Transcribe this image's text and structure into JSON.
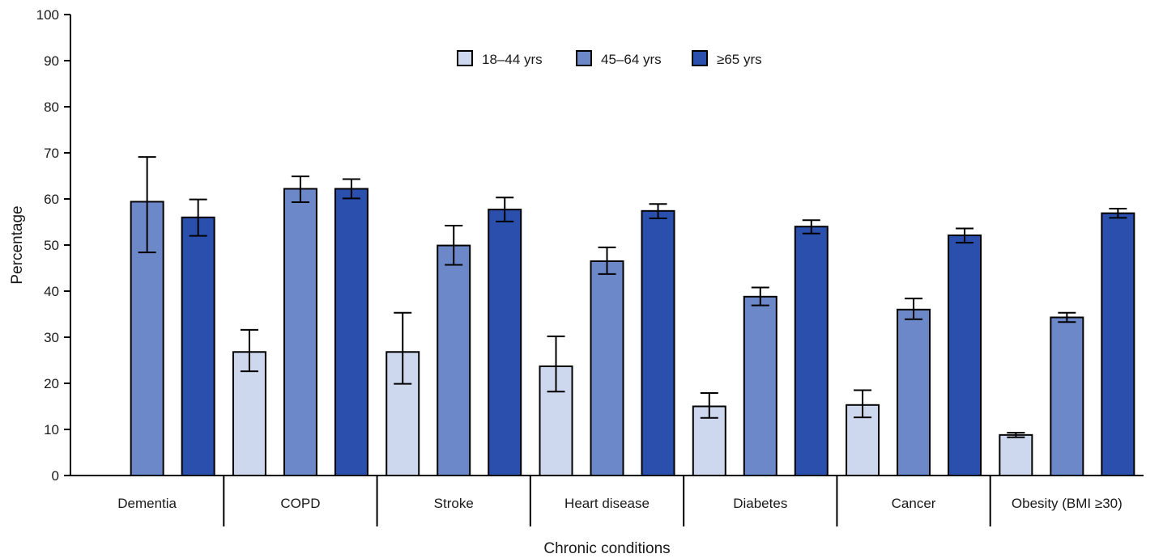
{
  "chart_data": {
    "type": "bar",
    "title": "",
    "xlabel": "Chronic conditions",
    "ylabel": "Percentage",
    "ylim": [
      0,
      100
    ],
    "yticks": [
      0,
      10,
      20,
      30,
      40,
      50,
      60,
      70,
      80,
      90,
      100
    ],
    "grid": false,
    "legend_position": "top-center",
    "categories": [
      "Dementia",
      "COPD",
      "Stroke",
      "Heart disease",
      "Diabetes",
      "Cancer",
      "Obesity (BMI ≥30)"
    ],
    "series": [
      {
        "name": "18–44 yrs",
        "color": "#cdd8ef",
        "values": [
          null,
          26.8,
          26.8,
          23.7,
          15.0,
          15.3,
          8.8
        ],
        "ci_low": [
          null,
          22.6,
          19.9,
          18.2,
          12.5,
          12.6,
          8.3
        ],
        "ci_high": [
          null,
          31.6,
          35.3,
          30.2,
          17.9,
          18.5,
          9.3
        ]
      },
      {
        "name": "45–64 yrs",
        "color": "#6d88c9",
        "values": [
          59.4,
          62.2,
          49.9,
          46.5,
          38.8,
          36.0,
          34.3
        ],
        "ci_low": [
          48.4,
          59.3,
          45.7,
          43.7,
          36.9,
          33.9,
          33.3
        ],
        "ci_high": [
          69.1,
          64.9,
          54.2,
          49.5,
          40.8,
          38.4,
          35.3
        ]
      },
      {
        "name": "≥65 yrs",
        "color": "#2b4fad",
        "values": [
          56.0,
          62.2,
          57.7,
          57.4,
          54.0,
          52.1,
          56.9
        ],
        "ci_low": [
          52.0,
          60.1,
          55.1,
          55.8,
          52.5,
          50.5,
          55.9
        ],
        "ci_high": [
          59.9,
          64.3,
          60.3,
          58.9,
          55.4,
          53.6,
          57.9
        ]
      }
    ]
  }
}
